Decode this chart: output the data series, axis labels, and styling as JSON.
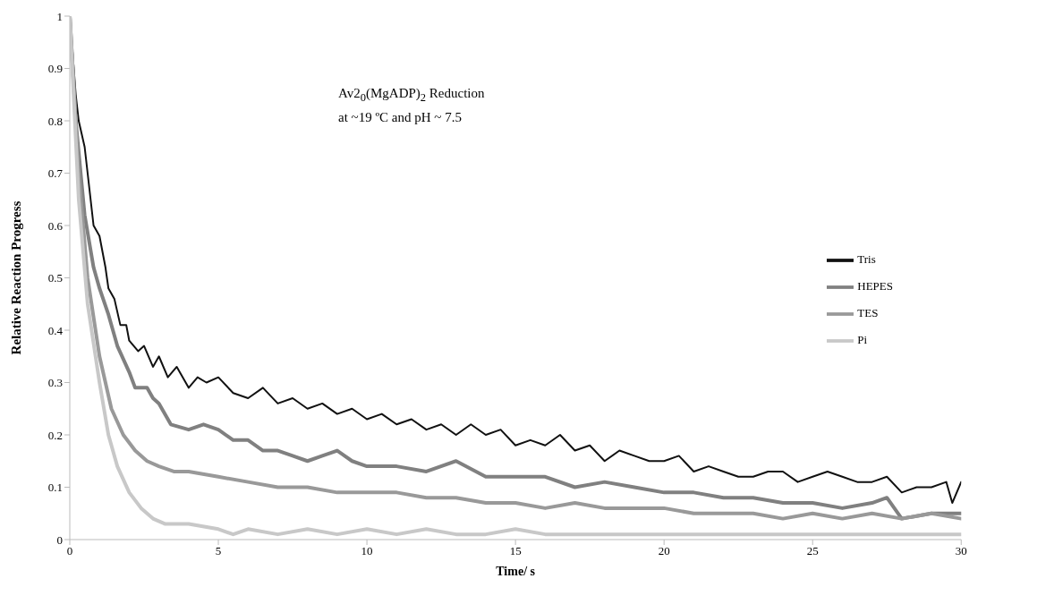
{
  "chart_data": {
    "type": "line",
    "xlabel": "Time/ s",
    "ylabel": "Relative Reaction Progress",
    "annotations": [
      "Av2$_{0}$(MgADP)$_{2}$ Reduction",
      "at ~19 ºC and pH ~ 7.5"
    ],
    "xlim": [
      0,
      30
    ],
    "xticks": [
      0,
      5,
      10,
      15,
      20,
      25,
      30
    ],
    "ylim": [
      0,
      1
    ],
    "yticks": [
      0,
      0.1,
      0.2,
      0.3,
      0.4,
      0.5,
      0.6,
      0.7,
      0.8,
      0.9,
      1
    ],
    "grid": false,
    "legend": "right",
    "marker": "none",
    "line_style": "solid",
    "series": [
      {
        "name": "Tris",
        "color": "#111111",
        "x": [
          0,
          0.2,
          0.3,
          0.5,
          0.7,
          0.8,
          1.0,
          1.2,
          1.3,
          1.5,
          1.7,
          1.9,
          2.0,
          2.3,
          2.5,
          2.8,
          3.0,
          3.3,
          3.6,
          4.0,
          4.3,
          4.6,
          5.0,
          5.5,
          6,
          6.5,
          7,
          7.5,
          8,
          8.5,
          9,
          9.5,
          10,
          10.5,
          11,
          11.5,
          12,
          12.5,
          13,
          13.5,
          14,
          14.5,
          15,
          15.5,
          16,
          16.5,
          17,
          17.5,
          18,
          18.5,
          19,
          19.5,
          20,
          20.5,
          21,
          21.5,
          22,
          22.5,
          23,
          23.5,
          24,
          24.5,
          25,
          25.5,
          26,
          26.5,
          27,
          27.5,
          28,
          28.5,
          29,
          29.5,
          29.7,
          30
        ],
        "values": [
          1,
          0.85,
          0.8,
          0.75,
          0.65,
          0.6,
          0.58,
          0.52,
          0.48,
          0.46,
          0.41,
          0.41,
          0.38,
          0.36,
          0.37,
          0.33,
          0.35,
          0.31,
          0.33,
          0.29,
          0.31,
          0.3,
          0.31,
          0.28,
          0.27,
          0.29,
          0.26,
          0.27,
          0.25,
          0.26,
          0.24,
          0.25,
          0.23,
          0.24,
          0.22,
          0.23,
          0.21,
          0.22,
          0.2,
          0.22,
          0.2,
          0.21,
          0.18,
          0.19,
          0.18,
          0.2,
          0.17,
          0.18,
          0.15,
          0.17,
          0.16,
          0.15,
          0.15,
          0.16,
          0.13,
          0.14,
          0.13,
          0.12,
          0.12,
          0.13,
          0.13,
          0.11,
          0.12,
          0.13,
          0.12,
          0.11,
          0.11,
          0.12,
          0.09,
          0.1,
          0.1,
          0.11,
          0.07,
          0.11
        ]
      },
      {
        "name": "HEPES",
        "color": "#808080",
        "x": [
          0,
          0.2,
          0.5,
          0.8,
          1.0,
          1.3,
          1.6,
          2.0,
          2.2,
          2.6,
          2.8,
          3.0,
          3.4,
          4,
          4.5,
          5,
          5.5,
          6,
          6.5,
          7,
          7.5,
          8,
          8.5,
          9,
          9.5,
          10,
          11,
          12,
          13,
          14,
          15,
          16,
          17,
          18,
          19,
          20,
          21,
          22,
          23,
          24,
          25,
          26,
          27,
          27.5,
          28,
          29,
          30
        ],
        "values": [
          1,
          0.8,
          0.62,
          0.52,
          0.48,
          0.43,
          0.37,
          0.32,
          0.29,
          0.29,
          0.27,
          0.26,
          0.22,
          0.21,
          0.22,
          0.21,
          0.19,
          0.19,
          0.17,
          0.17,
          0.16,
          0.15,
          0.16,
          0.17,
          0.15,
          0.14,
          0.14,
          0.13,
          0.15,
          0.12,
          0.12,
          0.12,
          0.1,
          0.11,
          0.1,
          0.09,
          0.09,
          0.08,
          0.08,
          0.07,
          0.07,
          0.06,
          0.07,
          0.08,
          0.04,
          0.05,
          0.05
        ]
      },
      {
        "name": "TES",
        "color": "#999999",
        "x": [
          0,
          0.3,
          0.6,
          1.0,
          1.4,
          1.8,
          2.2,
          2.6,
          3,
          3.5,
          4,
          5,
          6,
          7,
          8,
          9,
          10,
          11,
          12,
          13,
          14,
          15,
          16,
          17,
          18,
          19,
          20,
          21,
          22,
          23,
          24,
          25,
          26,
          27,
          28,
          29,
          30
        ],
        "values": [
          1,
          0.7,
          0.5,
          0.35,
          0.25,
          0.2,
          0.17,
          0.15,
          0.14,
          0.13,
          0.13,
          0.12,
          0.11,
          0.1,
          0.1,
          0.09,
          0.09,
          0.09,
          0.08,
          0.08,
          0.07,
          0.07,
          0.06,
          0.07,
          0.06,
          0.06,
          0.06,
          0.05,
          0.05,
          0.05,
          0.04,
          0.05,
          0.04,
          0.05,
          0.04,
          0.05,
          0.04
        ]
      },
      {
        "name": "Pi",
        "color": "#c8c8c8",
        "x": [
          0,
          0.3,
          0.6,
          1.0,
          1.3,
          1.6,
          2.0,
          2.4,
          2.8,
          3.2,
          4,
          5,
          5.5,
          6,
          7,
          8,
          9,
          10,
          11,
          12,
          13,
          14,
          15,
          16,
          17,
          18,
          19,
          20,
          21,
          22,
          23,
          24,
          25,
          26,
          27,
          28,
          29,
          30
        ],
        "values": [
          1,
          0.65,
          0.45,
          0.3,
          0.2,
          0.14,
          0.09,
          0.06,
          0.04,
          0.03,
          0.03,
          0.02,
          0.01,
          0.02,
          0.01,
          0.02,
          0.01,
          0.02,
          0.01,
          0.02,
          0.01,
          0.01,
          0.02,
          0.01,
          0.01,
          0.01,
          0.01,
          0.01,
          0.01,
          0.01,
          0.01,
          0.01,
          0.01,
          0.01,
          0.01,
          0.01,
          0.01,
          0.01
        ]
      }
    ]
  }
}
